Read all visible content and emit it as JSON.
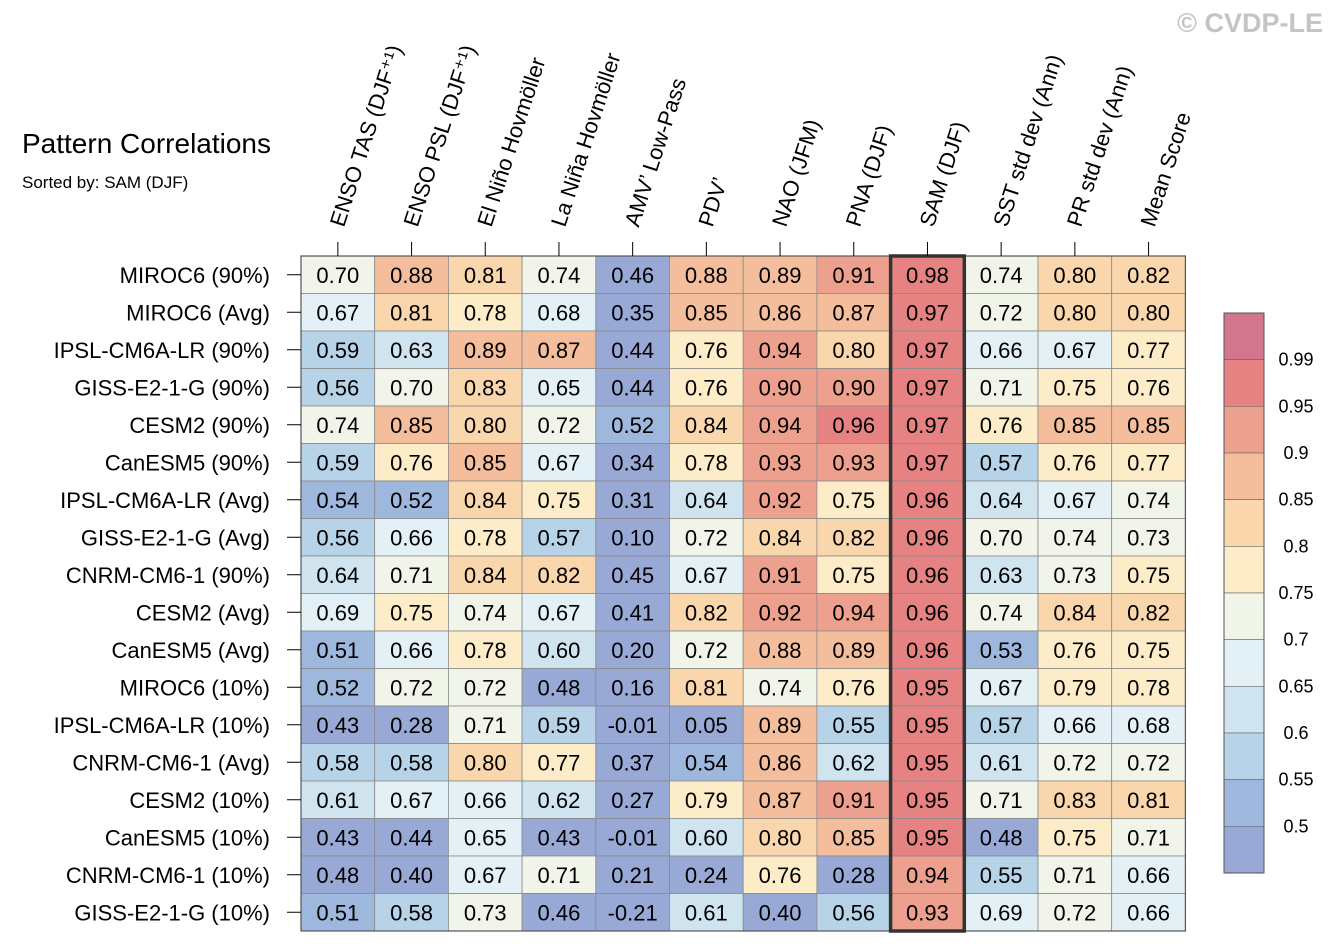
{
  "watermark": "© CVDP-LE",
  "chart_data": {
    "type": "heatmap",
    "title": "Pattern Correlations",
    "subtitle": "Sorted by: SAM (DJF)",
    "highlight_column": "SAM (DJF)",
    "columns": [
      "ENSO TAS (DJF⁺¹)",
      "ENSO PSL (DJF⁺¹)",
      "El Niño Hovmöller",
      "La Niña Hovmöller",
      "AMV’ Low-Pass",
      "PDV’",
      "NAO (JFM)",
      "PNA (DJF)",
      "SAM (DJF)",
      "SST std dev (Ann)",
      "PR std dev (Ann)",
      "Mean Score"
    ],
    "rows": [
      "MIROC6 (90%)",
      "MIROC6 (Avg)",
      "IPSL-CM6A-LR (90%)",
      "GISS-E2-1-G (90%)",
      "CESM2 (90%)",
      "CanESM5 (90%)",
      "IPSL-CM6A-LR (Avg)",
      "GISS-E2-1-G (Avg)",
      "CNRM-CM6-1 (90%)",
      "CESM2 (Avg)",
      "CanESM5 (Avg)",
      "MIROC6 (10%)",
      "IPSL-CM6A-LR (10%)",
      "CNRM-CM6-1 (Avg)",
      "CESM2 (10%)",
      "CanESM5 (10%)",
      "CNRM-CM6-1 (10%)",
      "GISS-E2-1-G (10%)"
    ],
    "values": [
      [
        "0.70",
        "0.88",
        "0.81",
        "0.74",
        "0.46",
        "0.88",
        "0.89",
        "0.91",
        "0.98",
        "0.74",
        "0.80",
        "0.82"
      ],
      [
        "0.67",
        "0.81",
        "0.78",
        "0.68",
        "0.35",
        "0.85",
        "0.86",
        "0.87",
        "0.97",
        "0.72",
        "0.80",
        "0.80"
      ],
      [
        "0.59",
        "0.63",
        "0.89",
        "0.87",
        "0.44",
        "0.76",
        "0.94",
        "0.80",
        "0.97",
        "0.66",
        "0.67",
        "0.77"
      ],
      [
        "0.56",
        "0.70",
        "0.83",
        "0.65",
        "0.44",
        "0.76",
        "0.90",
        "0.90",
        "0.97",
        "0.71",
        "0.75",
        "0.76"
      ],
      [
        "0.74",
        "0.85",
        "0.80",
        "0.72",
        "0.52",
        "0.84",
        "0.94",
        "0.96",
        "0.97",
        "0.76",
        "0.85",
        "0.85"
      ],
      [
        "0.59",
        "0.76",
        "0.85",
        "0.67",
        "0.34",
        "0.78",
        "0.93",
        "0.93",
        "0.97",
        "0.57",
        "0.76",
        "0.77"
      ],
      [
        "0.54",
        "0.52",
        "0.84",
        "0.75",
        "0.31",
        "0.64",
        "0.92",
        "0.75",
        "0.96",
        "0.64",
        "0.67",
        "0.74"
      ],
      [
        "0.56",
        "0.66",
        "0.78",
        "0.57",
        "0.10",
        "0.72",
        "0.84",
        "0.82",
        "0.96",
        "0.70",
        "0.74",
        "0.73"
      ],
      [
        "0.64",
        "0.71",
        "0.84",
        "0.82",
        "0.45",
        "0.67",
        "0.91",
        "0.75",
        "0.96",
        "0.63",
        "0.73",
        "0.75"
      ],
      [
        "0.69",
        "0.75",
        "0.74",
        "0.67",
        "0.41",
        "0.82",
        "0.92",
        "0.94",
        "0.96",
        "0.74",
        "0.84",
        "0.82"
      ],
      [
        "0.51",
        "0.66",
        "0.78",
        "0.60",
        "0.20",
        "0.72",
        "0.88",
        "0.89",
        "0.96",
        "0.53",
        "0.76",
        "0.75"
      ],
      [
        "0.52",
        "0.72",
        "0.72",
        "0.48",
        "0.16",
        "0.81",
        "0.74",
        "0.76",
        "0.95",
        "0.67",
        "0.79",
        "0.78"
      ],
      [
        "0.43",
        "0.28",
        "0.71",
        "0.59",
        "-0.01",
        "0.05",
        "0.89",
        "0.55",
        "0.95",
        "0.57",
        "0.66",
        "0.68"
      ],
      [
        "0.58",
        "0.58",
        "0.80",
        "0.77",
        "0.37",
        "0.54",
        "0.86",
        "0.62",
        "0.95",
        "0.61",
        "0.72",
        "0.72"
      ],
      [
        "0.61",
        "0.67",
        "0.66",
        "0.62",
        "0.27",
        "0.79",
        "0.87",
        "0.91",
        "0.95",
        "0.71",
        "0.83",
        "0.81"
      ],
      [
        "0.43",
        "0.44",
        "0.65",
        "0.43",
        "-0.01",
        "0.60",
        "0.80",
        "0.85",
        "0.95",
        "0.48",
        "0.75",
        "0.71"
      ],
      [
        "0.48",
        "0.40",
        "0.67",
        "0.71",
        "0.21",
        "0.24",
        "0.76",
        "0.28",
        "0.94",
        "0.55",
        "0.71",
        "0.66"
      ],
      [
        "0.51",
        "0.58",
        "0.73",
        "0.46",
        "-0.21",
        "0.61",
        "0.40",
        "0.56",
        "0.93",
        "0.69",
        "0.72",
        "0.66"
      ]
    ],
    "colorbar": {
      "ticks": [
        "0.99",
        "0.95",
        "0.9",
        "0.85",
        "0.8",
        "0.75",
        "0.7",
        "0.65",
        "0.6",
        "0.55",
        "0.5"
      ],
      "colors": [
        "#d2758e",
        "#e68282",
        "#eda08e",
        "#f4be9c",
        "#fad6ac",
        "#fcecc8",
        "#f1f4e9",
        "#e3f1f7",
        "#cfe4ef",
        "#b6d3e7",
        "#9eb7dc",
        "#98a9d6"
      ]
    }
  }
}
